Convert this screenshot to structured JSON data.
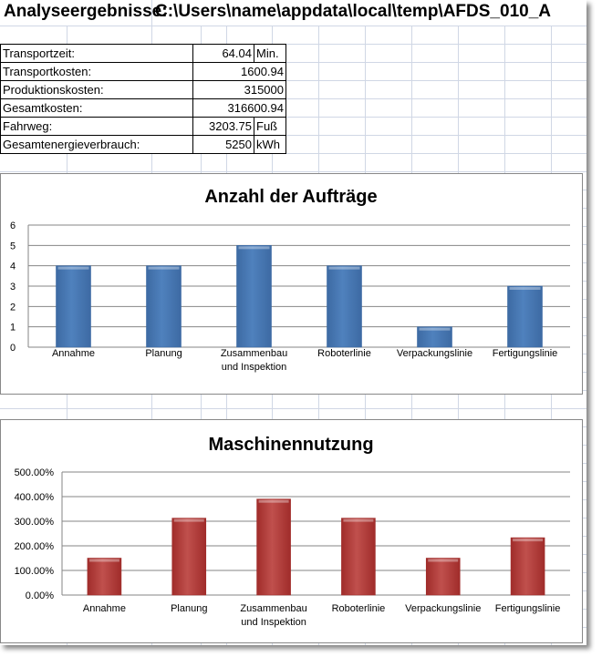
{
  "sheet": {
    "title": "Analyseergebnisse:",
    "path": "C:\\Users\\name\\appdata\\local\\temp\\AFDS_010_A"
  },
  "results": [
    {
      "label": "Transportzeit:",
      "value": "64.04",
      "unit": "Min."
    },
    {
      "label": "Transportkosten:",
      "value": "1600.94",
      "unit": ""
    },
    {
      "label": "Produktionskosten:",
      "value": "315000",
      "unit": ""
    },
    {
      "label": "Gesamtkosten:",
      "value": "316600.94",
      "unit": ""
    },
    {
      "label": "Fahrweg:",
      "value": "3203.75",
      "unit": "Fuß"
    },
    {
      "label": "Gesamtenergieverbrauch:",
      "value": "5250",
      "unit": "kWh"
    }
  ],
  "chart_data": [
    {
      "type": "bar",
      "title": "Anzahl der Aufträge",
      "categories": [
        "Annahme",
        "Planung",
        "Zusammenbau und Inspektion",
        "Roboterlinie",
        "Verpackungslinie",
        "Fertigungslinie"
      ],
      "category_lines": [
        [
          "Annahme"
        ],
        [
          "Planung"
        ],
        [
          "Zusammenbau",
          "und Inspektion"
        ],
        [
          "Roboterlinie"
        ],
        [
          "Verpackungslinie"
        ],
        [
          "Fertigungslinie"
        ]
      ],
      "values": [
        4,
        4,
        5,
        4,
        1,
        3
      ],
      "ylim": [
        0,
        6
      ],
      "yticks": [
        "0",
        "1",
        "2",
        "3",
        "4",
        "5",
        "6"
      ],
      "color": "#4f81bd",
      "grid": true,
      "legend": "none"
    },
    {
      "type": "bar",
      "title": "Maschinennutzung",
      "categories": [
        "Annahme",
        "Planung",
        "Zusammenbau und Inspektion",
        "Roboterlinie",
        "Verpackungslinie",
        "Fertigungslinie"
      ],
      "category_lines": [
        [
          "Annahme"
        ],
        [
          "Planung"
        ],
        [
          "Zusammenbau",
          "und Inspektion"
        ],
        [
          "Roboterlinie"
        ],
        [
          "Verpackungslinie"
        ],
        [
          "Fertigungslinie"
        ]
      ],
      "values": [
        150,
        312.5,
        390,
        312.5,
        150,
        233
      ],
      "ylim": [
        0,
        500
      ],
      "yticks": [
        "0.00%",
        "100.00%",
        "200.00%",
        "300.00%",
        "400.00%",
        "500.00%"
      ],
      "color": "#c0504d",
      "grid": true,
      "legend": "none"
    }
  ]
}
